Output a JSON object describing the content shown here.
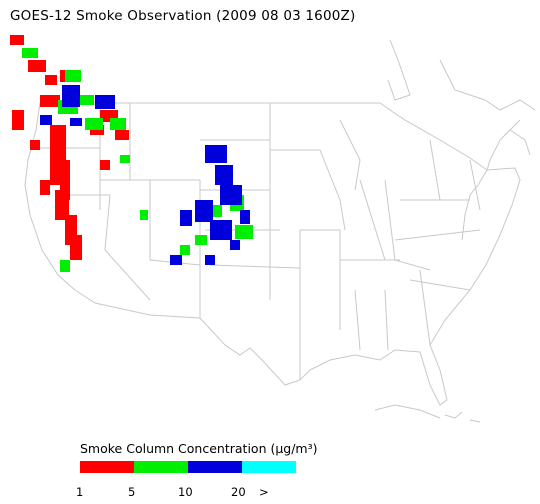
{
  "title": "GOES-12 Smoke Observation (2009 08 03  1600Z)",
  "legend": {
    "title": "Smoke Column Concentration (µg/m³)",
    "bins": [
      {
        "color": "#ff0000"
      },
      {
        "color": "#00ee00"
      },
      {
        "color": "#0000dd"
      },
      {
        "color": "#00ffff"
      }
    ],
    "ticks": [
      "1",
      "5",
      "10",
      "20",
      ">"
    ]
  },
  "map": {
    "region": "Contiguous United States",
    "smoke_categories": [
      "red",
      "green",
      "blue"
    ]
  }
}
